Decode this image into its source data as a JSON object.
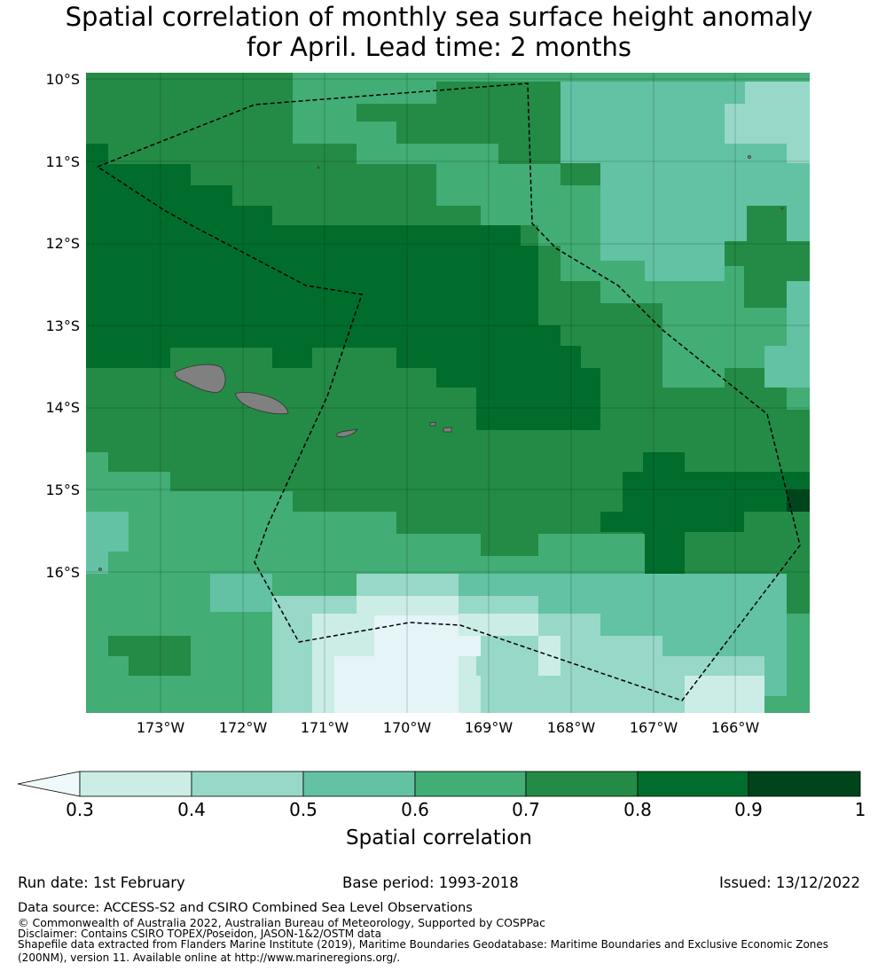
{
  "title": {
    "line1": "Spatial correlation of monthly sea surface height anomaly",
    "line2": "for April. Lead time: 2 months"
  },
  "map": {
    "lat_labels": [
      "10°S",
      "11°S",
      "12°S",
      "13°S",
      "14°S",
      "15°S",
      "16°S"
    ],
    "lon_labels": [
      "173°W",
      "172°W",
      "171°W",
      "170°W",
      "169°W",
      "168°W",
      "167°W",
      "166°W"
    ],
    "colors": {
      "c03": "#e4f4f7",
      "c04": "#cbede6",
      "c05": "#98d8c8",
      "c06": "#62c2a3",
      "c07": "#42ad75",
      "c08": "#238b45",
      "c09": "#006d2c",
      "c10": "#00441b",
      "land": "#808080"
    }
  },
  "colorbar": {
    "ticks": [
      "0.3",
      "0.4",
      "0.5",
      "0.6",
      "0.7",
      "0.8",
      "0.9",
      "1"
    ],
    "label": "Spatial correlation"
  },
  "footer": {
    "run_date": "Run date: 1st February",
    "base_period": "Base period: 1993-2018",
    "issued": "Issued: 13/12/2022",
    "data_source": "Data source: ACCESS-S2 and CSIRO Combined Sea Level Observations",
    "copyright": "© Commonwealth of Australia 2022, Australian Bureau of Meteorology, Supported by COSPPac",
    "disclaimer": "Disclaimer: Contains CSIRO TOPEX/Poseidon, JASON-1&2/OSTM data",
    "shapefile_line1": "Shapefile data extracted from Flanders Marine Institute (2019), Maritime Boundaries Geodatabase: Maritime Boundaries and Exclusive Economic Zones",
    "shapefile_line2": "(200NM), version 11. Available online at http://www.marineregions.org/."
  }
}
